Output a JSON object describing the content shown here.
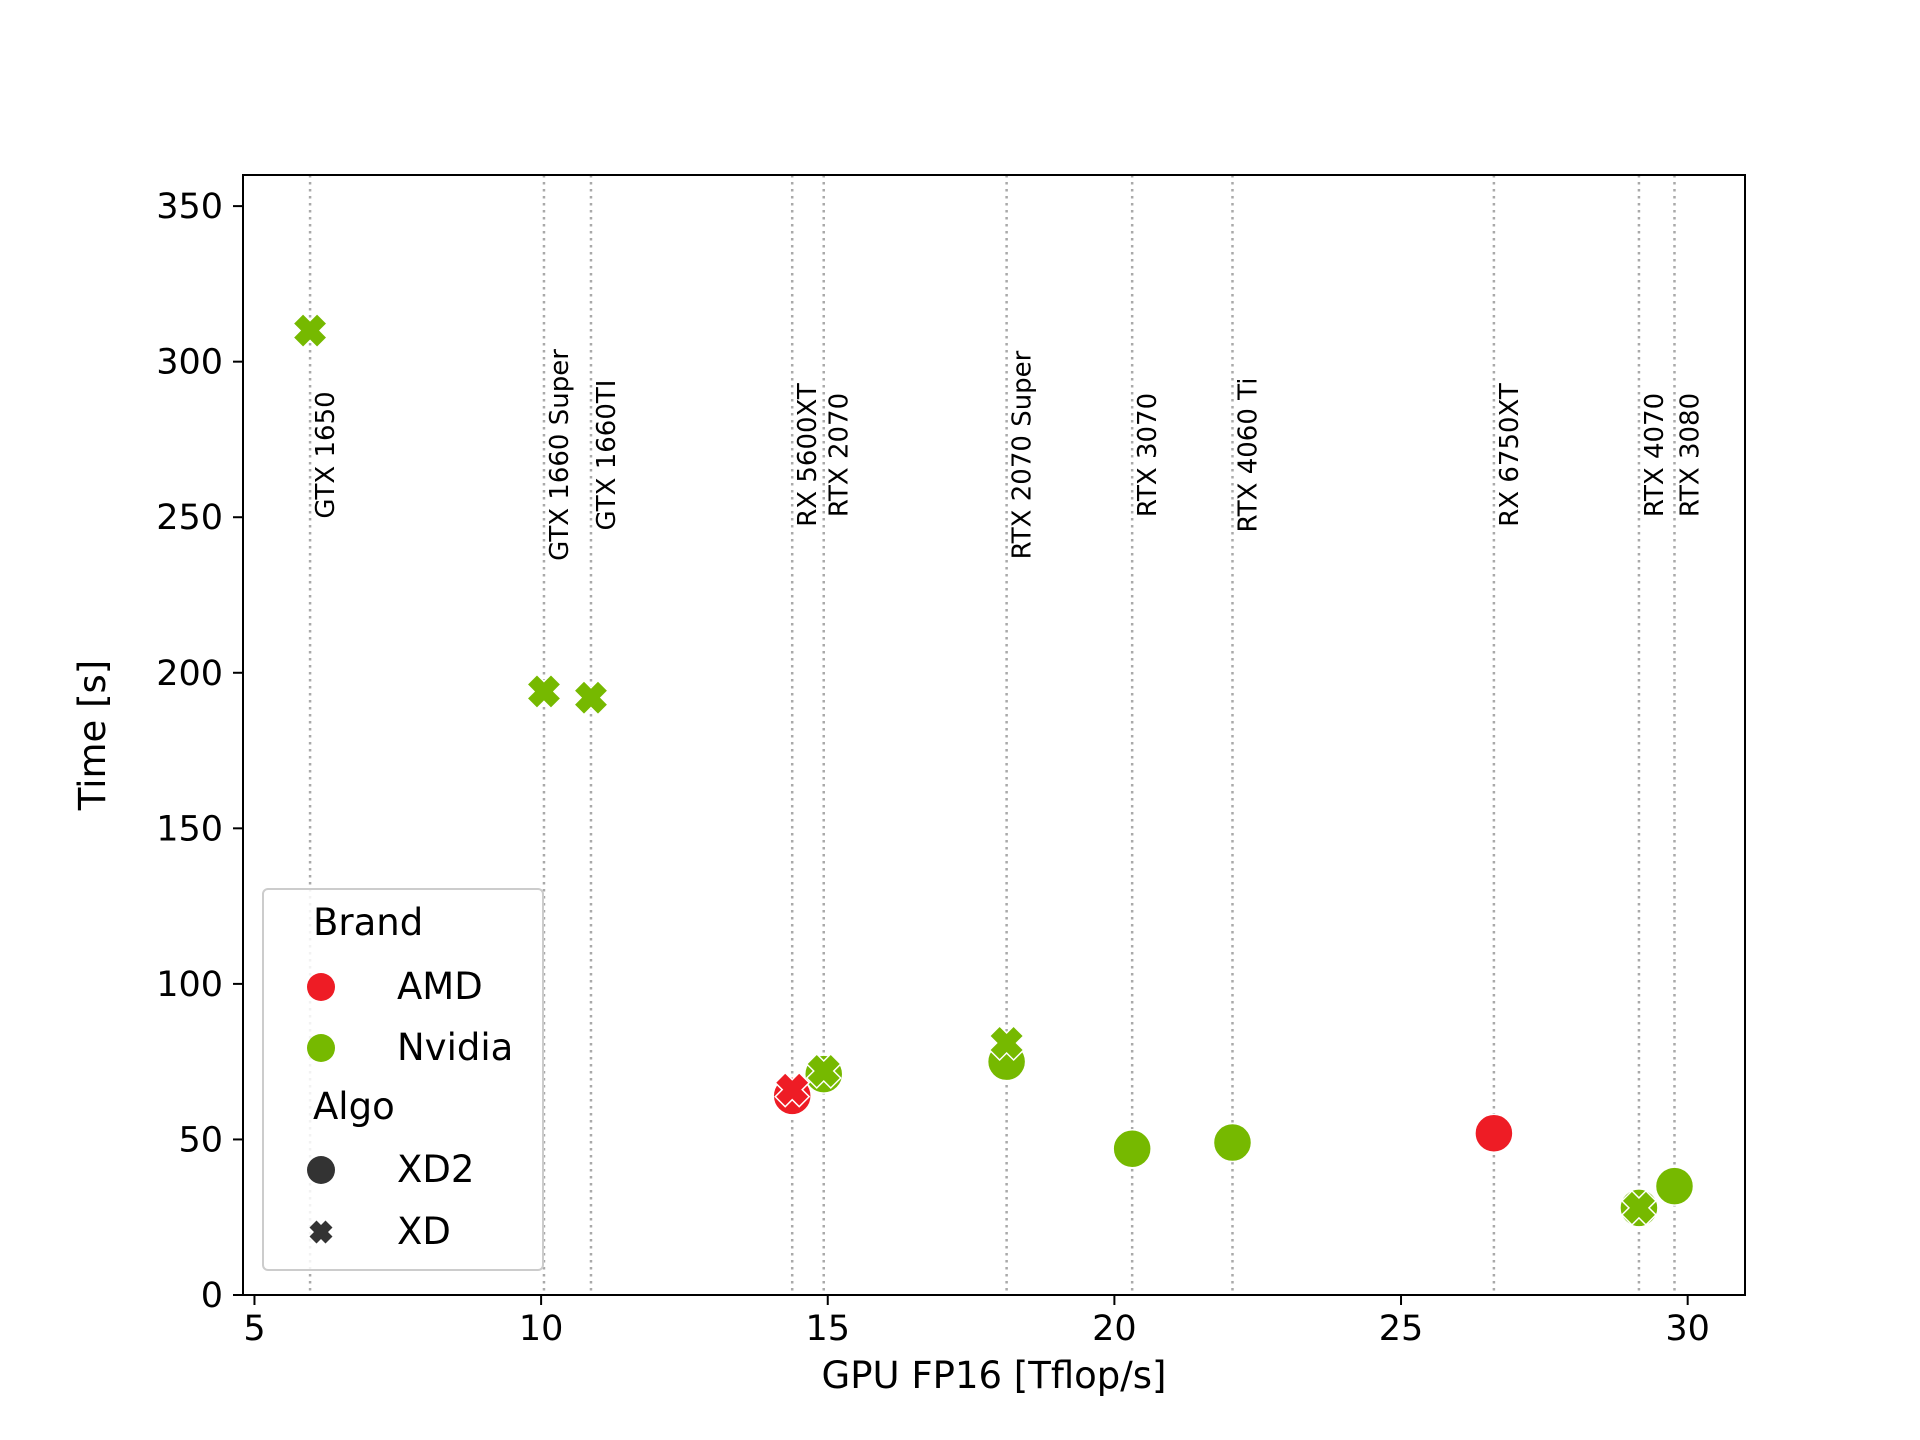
{
  "chart_data": {
    "type": "scatter",
    "xlabel": "GPU FP16 [Tflop/s]",
    "ylabel": "Time [s]",
    "xlim": [
      4.8,
      31.0
    ],
    "ylim": [
      0,
      360
    ],
    "xticks": [
      5,
      10,
      15,
      20,
      25,
      30
    ],
    "yticks": [
      0,
      50,
      100,
      150,
      200,
      250,
      300,
      350
    ],
    "grid": false,
    "colors": {
      "AMD": "#ee1c25",
      "Nvidia": "#76b900",
      "marker_neutral": "#333333"
    },
    "reference_lines": [
      {
        "name": "GTX 1650",
        "x": 5.97
      },
      {
        "name": "GTX 1660 Super",
        "x": 10.05
      },
      {
        "name": "GTX 1660TI",
        "x": 10.87
      },
      {
        "name": "RX 5600XT",
        "x": 14.38
      },
      {
        "name": "RTX 2070",
        "x": 14.93
      },
      {
        "name": "RTX 2070 Super",
        "x": 18.12
      },
      {
        "name": "RTX 3070",
        "x": 20.31
      },
      {
        "name": "RTX 4060 Ti",
        "x": 22.06
      },
      {
        "name": "RX 6750XT",
        "x": 26.62
      },
      {
        "name": "RTX 4070",
        "x": 29.15
      },
      {
        "name": "RTX 3080",
        "x": 29.77
      }
    ],
    "series": [
      {
        "brand": "Nvidia",
        "algo": "XD",
        "x": 5.97,
        "y": 310
      },
      {
        "brand": "Nvidia",
        "algo": "XD",
        "x": 10.05,
        "y": 194
      },
      {
        "brand": "Nvidia",
        "algo": "XD",
        "x": 10.87,
        "y": 192
      },
      {
        "brand": "AMD",
        "algo": "XD2",
        "x": 14.38,
        "y": 64
      },
      {
        "brand": "AMD",
        "algo": "XD",
        "x": 14.38,
        "y": 66
      },
      {
        "brand": "Nvidia",
        "algo": "XD2",
        "x": 14.93,
        "y": 71
      },
      {
        "brand": "Nvidia",
        "algo": "XD",
        "x": 14.93,
        "y": 72
      },
      {
        "brand": "Nvidia",
        "algo": "XD2",
        "x": 18.12,
        "y": 75
      },
      {
        "brand": "Nvidia",
        "algo": "XD",
        "x": 18.12,
        "y": 81
      },
      {
        "brand": "Nvidia",
        "algo": "XD2",
        "x": 20.31,
        "y": 47
      },
      {
        "brand": "Nvidia",
        "algo": "XD2",
        "x": 22.06,
        "y": 49
      },
      {
        "brand": "AMD",
        "algo": "XD2",
        "x": 26.62,
        "y": 52
      },
      {
        "brand": "Nvidia",
        "algo": "XD2",
        "x": 29.15,
        "y": 28
      },
      {
        "brand": "Nvidia",
        "algo": "XD",
        "x": 29.15,
        "y": 28
      },
      {
        "brand": "Nvidia",
        "algo": "XD2",
        "x": 29.77,
        "y": 35
      }
    ],
    "legend": {
      "placement": "lower-left",
      "brand_title": "Brand",
      "brand_entries": [
        "AMD",
        "Nvidia"
      ],
      "algo_title": "Algo",
      "algo_entries": [
        "XD2",
        "XD"
      ]
    }
  }
}
